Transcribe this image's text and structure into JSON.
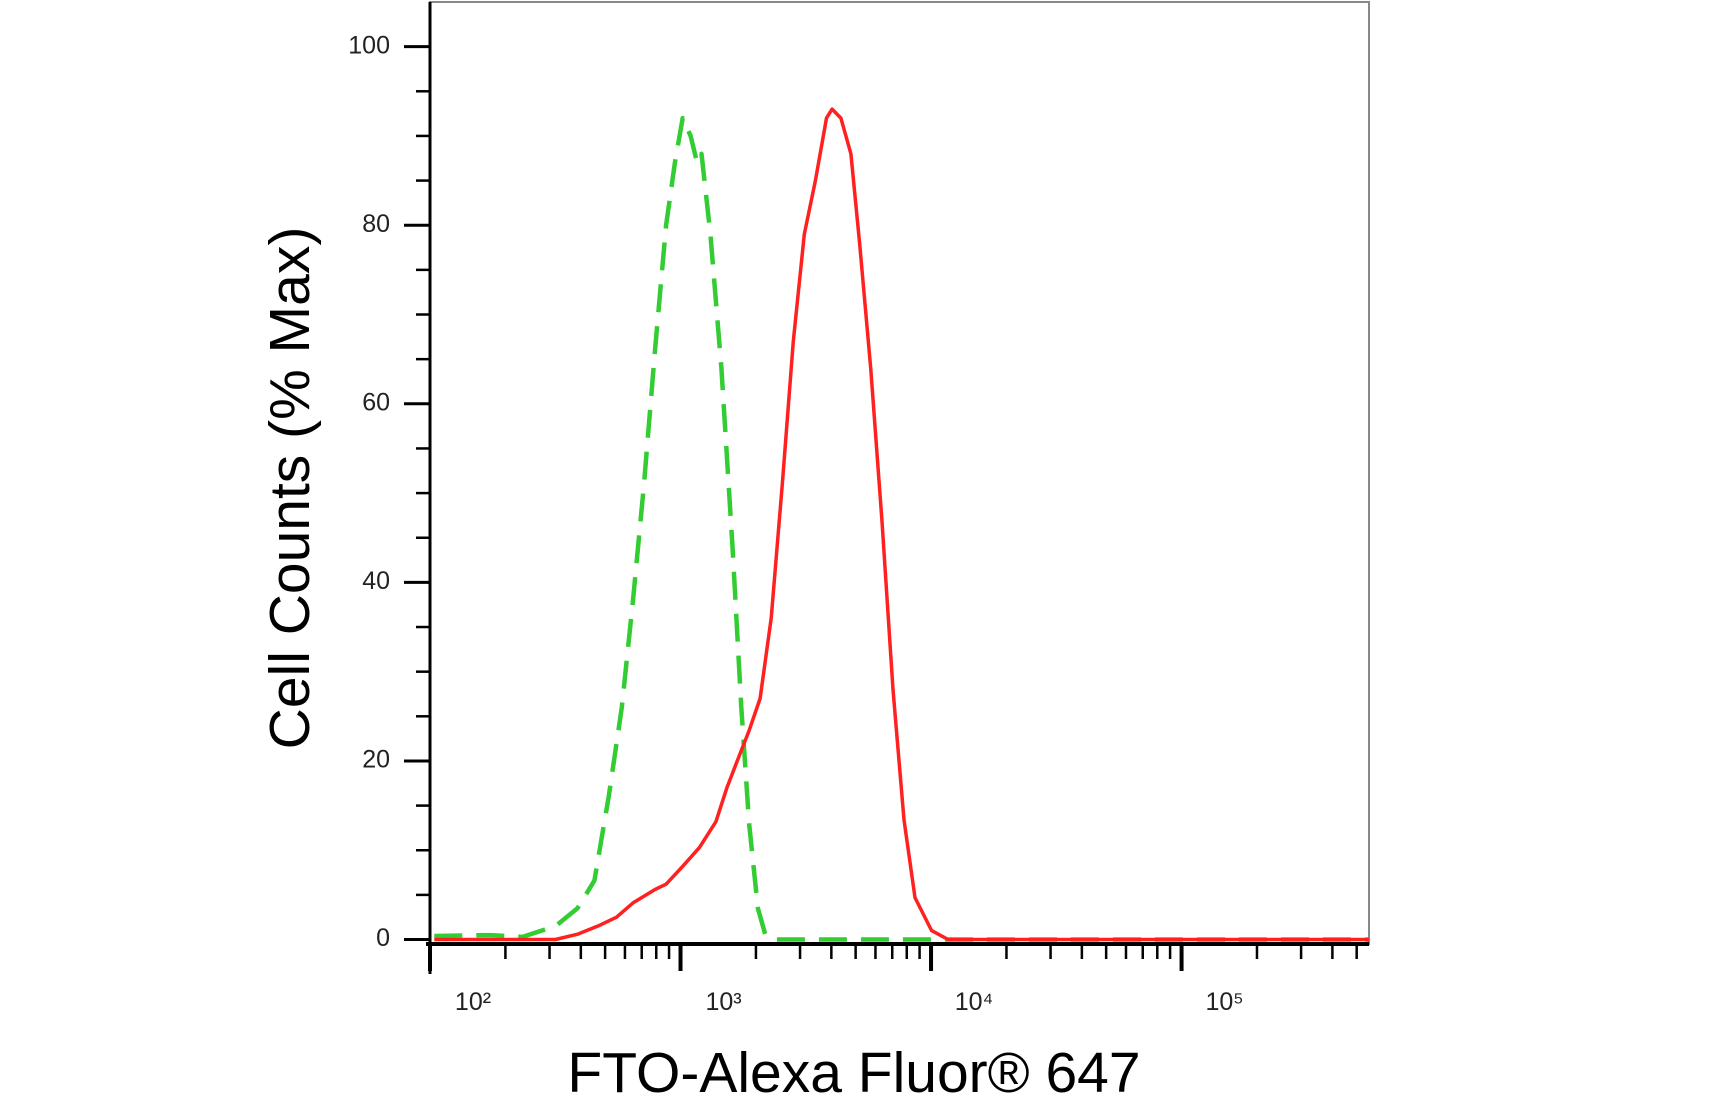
{
  "chart_data": {
    "type": "line",
    "x_label": "FTO-Alexa Fluor® 647",
    "y_label": "Cell Counts (% Max)",
    "xscale": "log",
    "xlim": [
      100,
      560000
    ],
    "ylim": [
      -0.5,
      105
    ],
    "xticks": [
      {
        "value": 100,
        "label": "10²"
      },
      {
        "value": 1000,
        "label": "10³"
      },
      {
        "value": 10000,
        "label": "10⁴"
      },
      {
        "value": 100000,
        "label": "10⁵"
      }
    ],
    "xminorticks": [
      200,
      300,
      400,
      500,
      600,
      700,
      800,
      900,
      2000,
      3000,
      4000,
      5000,
      6000,
      7000,
      8000,
      9000,
      20000,
      30000,
      40000,
      50000,
      60000,
      70000,
      80000,
      90000,
      200000,
      300000,
      400000,
      500000
    ],
    "yticks": [
      0,
      20,
      40,
      60,
      80,
      100
    ],
    "yminorticks": [
      5,
      10,
      15,
      25,
      30,
      35,
      45,
      50,
      55,
      65,
      70,
      75,
      85,
      90,
      95
    ],
    "grid": false,
    "series": [
      {
        "color": "#33cc33",
        "line_style": "dashed",
        "x": [
          104,
          172,
          234,
          317,
          388,
          453,
          517,
          583,
          646,
          715,
          791,
          876,
          950,
          1020,
          1097,
          1165,
          1213,
          1316,
          1456,
          1612,
          1749,
          1878,
          2036,
          2188,
          2422,
          6693,
          51200,
          560000
        ],
        "values": [
          0.4,
          0.5,
          0.3,
          1.5,
          3.5,
          6.6,
          16,
          26,
          38,
          51,
          66,
          80,
          87,
          92,
          90,
          87,
          88,
          79,
          64,
          44,
          26,
          13,
          3.5,
          0.4,
          0,
          0,
          0,
          0
        ]
      },
      {
        "color": "#ff2020",
        "line_style": "solid",
        "x": [
          104,
          259,
          317,
          388,
          476,
          555,
          646,
          791,
          876,
          1020,
          1189,
          1384,
          1531,
          1694,
          1878,
          2078,
          2302,
          2548,
          2820,
          3120,
          3455,
          3826,
          4027,
          4367,
          4786,
          5188,
          5741,
          6364,
          7047,
          7798,
          8630,
          10050,
          11700,
          18500,
          560000
        ],
        "values": [
          0,
          0,
          0,
          0.6,
          1.6,
          2.5,
          4.1,
          5.6,
          6.2,
          8.2,
          10.3,
          13.2,
          17,
          20.2,
          23.4,
          27,
          36,
          51,
          67,
          79,
          85,
          92,
          93,
          92,
          88,
          78,
          64,
          47,
          28,
          13.4,
          4.7,
          1,
          0,
          0,
          0
        ]
      }
    ]
  }
}
